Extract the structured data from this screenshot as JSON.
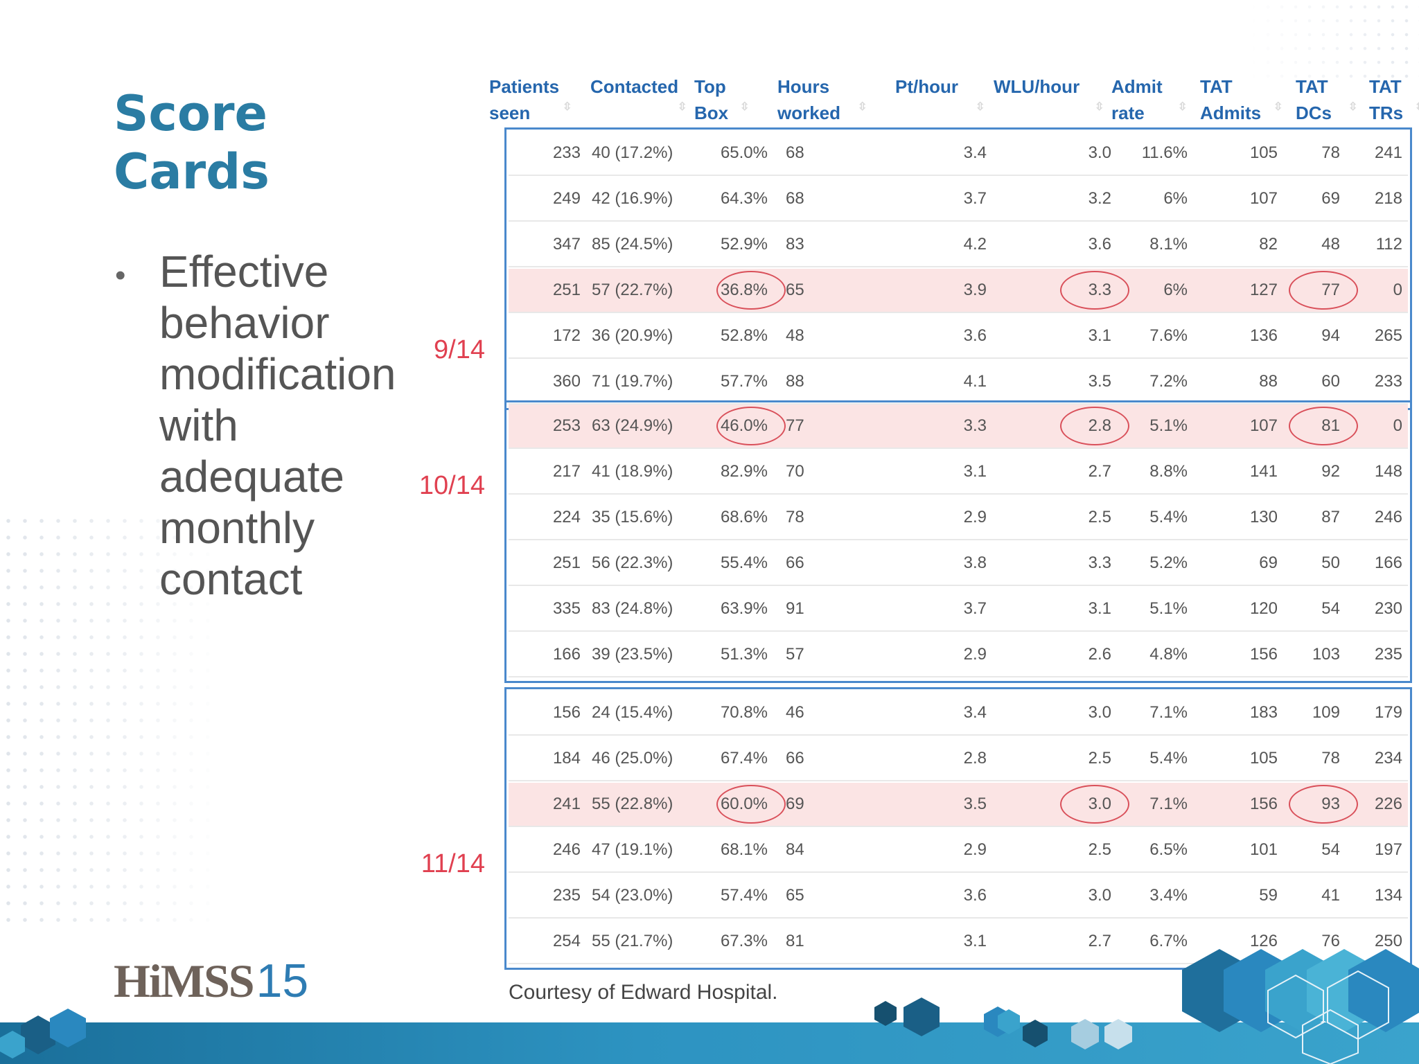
{
  "slide": {
    "title_line1": "Score",
    "title_line2": "Cards",
    "bullets": [
      "Effective behavior modification with adequate monthly contact"
    ],
    "courtesy": "Courtesy of Edward Hospital.",
    "logo_text": "HiMSS",
    "logo_number": "15"
  },
  "table": {
    "headers": [
      {
        "label": "Patients seen"
      },
      {
        "label": "Contacted"
      },
      {
        "label": "Top Box"
      },
      {
        "label": "Hours worked"
      },
      {
        "label": "Pt/hour"
      },
      {
        "label": "WLU/hour"
      },
      {
        "label": "Admit rate"
      },
      {
        "label": "TAT Admits"
      },
      {
        "label": "TAT DCs"
      },
      {
        "label": "TAT TRs"
      }
    ],
    "rows": [
      [
        "233",
        "40 (17.2%)",
        "65.0%",
        "68",
        "3.4",
        "3.0",
        "11.6%",
        "105",
        "78",
        "241"
      ],
      [
        "249",
        "42 (16.9%)",
        "64.3%",
        "68",
        "3.7",
        "3.2",
        "6%",
        "107",
        "69",
        "218"
      ],
      [
        "347",
        "85 (24.5%)",
        "52.9%",
        "83",
        "4.2",
        "3.6",
        "8.1%",
        "82",
        "48",
        "112"
      ],
      [
        "251",
        "57 (22.7%)",
        "36.8%",
        "65",
        "3.9",
        "3.3",
        "6%",
        "127",
        "77",
        "0"
      ],
      [
        "172",
        "36 (20.9%)",
        "52.8%",
        "48",
        "3.6",
        "3.1",
        "7.6%",
        "136",
        "94",
        "265"
      ],
      [
        "360",
        "71 (19.7%)",
        "57.7%",
        "88",
        "4.1",
        "3.5",
        "7.2%",
        "88",
        "60",
        "233"
      ],
      [
        "253",
        "63 (24.9%)",
        "46.0%",
        "77",
        "3.3",
        "2.8",
        "5.1%",
        "107",
        "81",
        "0"
      ],
      [
        "217",
        "41 (18.9%)",
        "82.9%",
        "70",
        "3.1",
        "2.7",
        "8.8%",
        "141",
        "92",
        "148"
      ],
      [
        "224",
        "35 (15.6%)",
        "68.6%",
        "78",
        "2.9",
        "2.5",
        "5.4%",
        "130",
        "87",
        "246"
      ],
      [
        "251",
        "56 (22.3%)",
        "55.4%",
        "66",
        "3.8",
        "3.3",
        "5.2%",
        "69",
        "50",
        "166"
      ],
      [
        "335",
        "83 (24.8%)",
        "63.9%",
        "91",
        "3.7",
        "3.1",
        "5.1%",
        "120",
        "54",
        "230"
      ],
      [
        "166",
        "39 (23.5%)",
        "51.3%",
        "57",
        "2.9",
        "2.6",
        "4.8%",
        "156",
        "103",
        "235"
      ],
      [
        "156",
        "24 (15.4%)",
        "70.8%",
        "46",
        "3.4",
        "3.0",
        "7.1%",
        "183",
        "109",
        "179"
      ],
      [
        "184",
        "46 (25.0%)",
        "67.4%",
        "66",
        "2.8",
        "2.5",
        "5.4%",
        "105",
        "78",
        "234"
      ],
      [
        "241",
        "55 (22.8%)",
        "60.0%",
        "69",
        "3.5",
        "3.0",
        "7.1%",
        "156",
        "93",
        "226"
      ],
      [
        "246",
        "47 (19.1%)",
        "68.1%",
        "84",
        "2.9",
        "2.5",
        "6.5%",
        "101",
        "54",
        "197"
      ],
      [
        "235",
        "54 (23.0%)",
        "57.4%",
        "65",
        "3.6",
        "3.0",
        "3.4%",
        "59",
        "41",
        "134"
      ],
      [
        "254",
        "55 (21.7%)",
        "67.3%",
        "81",
        "3.1",
        "2.7",
        "6.7%",
        "126",
        "76",
        "250"
      ]
    ],
    "highlighted_rows": [
      3,
      6,
      14
    ],
    "circled_columns": [
      2,
      5,
      8
    ],
    "month_labels": [
      "9/14",
      "10/14",
      "11/14"
    ],
    "colors": {
      "header": "#2566ad",
      "box": "#4a89cc",
      "highlight": "#fbe4e4",
      "circle": "#d9505a",
      "month": "#e04050"
    }
  }
}
